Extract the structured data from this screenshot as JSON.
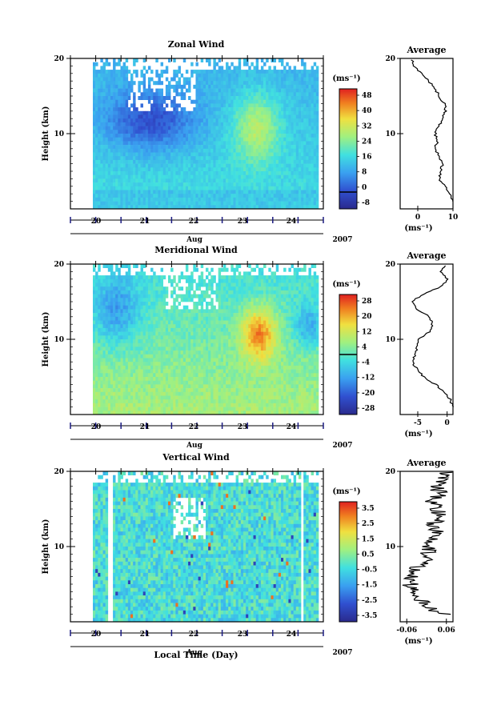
{
  "figure": {
    "xaxis_label": "Local Time (Day)"
  },
  "chart_data": [
    {
      "type": "heatmap",
      "title": "Zonal Wind",
      "ylabel": "Height (km)",
      "ylim": [
        0,
        20
      ],
      "yticks": [
        "10",
        "20"
      ],
      "x_ticks": [
        "20",
        "21",
        "22",
        "23",
        "24"
      ],
      "x_sublabel": "Aug",
      "year": "2007",
      "colorbar": {
        "unit": "(ms⁻¹)",
        "ticks": [
          "48",
          "40",
          "32",
          "24",
          "16",
          "8",
          "0",
          "-8"
        ],
        "range": [
          -8,
          48
        ]
      },
      "average": {
        "title": "Average",
        "xlabel": "(ms⁻¹)",
        "xticks": [
          "0",
          "10"
        ],
        "xlim": [
          -5,
          10
        ],
        "profile": [
          [
            1,
            10
          ],
          [
            2,
            9
          ],
          [
            3,
            8
          ],
          [
            4,
            6
          ],
          [
            5,
            6.5
          ],
          [
            6,
            7
          ],
          [
            7,
            6
          ],
          [
            8,
            5
          ],
          [
            9,
            5.5
          ],
          [
            10,
            5
          ],
          [
            11,
            6
          ],
          [
            12,
            7
          ],
          [
            13,
            8
          ],
          [
            14,
            7.5
          ],
          [
            15,
            6
          ],
          [
            16,
            5
          ],
          [
            17,
            3
          ],
          [
            18,
            1
          ],
          [
            19,
            -1
          ],
          [
            20,
            -2
          ]
        ]
      }
    },
    {
      "type": "heatmap",
      "title": "Meridional Wind",
      "ylabel": "Height (km)",
      "ylim": [
        0,
        20
      ],
      "yticks": [
        "10",
        "20"
      ],
      "x_ticks": [
        "20",
        "21",
        "22",
        "23",
        "24"
      ],
      "x_sublabel": "Aug",
      "year": "2007",
      "colorbar": {
        "unit": "(ms⁻¹)",
        "ticks": [
          "28",
          "20",
          "12",
          "4",
          "-4",
          "-12",
          "-20",
          "-28"
        ],
        "range": [
          -28,
          28
        ]
      },
      "average": {
        "title": "Average",
        "xlabel": "(ms⁻¹)",
        "xticks": [
          "-5",
          "0"
        ],
        "xlim": [
          -8,
          1
        ],
        "profile": [
          [
            1,
            1
          ],
          [
            2,
            0.5
          ],
          [
            3,
            -0.5
          ],
          [
            4,
            -2
          ],
          [
            5,
            -4
          ],
          [
            6,
            -5
          ],
          [
            7,
            -6
          ],
          [
            8,
            -5.5
          ],
          [
            9,
            -5
          ],
          [
            10,
            -5
          ],
          [
            11,
            -3
          ],
          [
            12,
            -2.5
          ],
          [
            13,
            -3
          ],
          [
            14,
            -5
          ],
          [
            15,
            -6
          ],
          [
            16,
            -4
          ],
          [
            17,
            -1
          ],
          [
            18,
            0
          ],
          [
            19,
            -1
          ],
          [
            20,
            0
          ]
        ]
      }
    },
    {
      "type": "heatmap",
      "title": "Vertical Wind",
      "ylabel": "Height (km)",
      "ylim": [
        0,
        20
      ],
      "yticks": [
        "10",
        "20"
      ],
      "x_ticks": [
        "20",
        "21",
        "22",
        "23",
        "24"
      ],
      "x_sublabel": "Aug",
      "year": "2007",
      "colorbar": {
        "unit": "(ms⁻¹)",
        "ticks": [
          "3.5",
          "2.5",
          "1.5",
          "0.5",
          "-0.5",
          "-1.5",
          "-2.5",
          "-3.5"
        ],
        "range": [
          -3.5,
          3.5
        ]
      },
      "average": {
        "title": "Average",
        "xlabel": "(ms⁻¹)",
        "xticks": [
          "-0.06",
          "0.06"
        ],
        "xlim": [
          -0.08,
          0.08
        ],
        "profile": [
          [
            1,
            0.05
          ],
          [
            2,
            0.0
          ],
          [
            3,
            -0.02
          ],
          [
            4,
            -0.04
          ],
          [
            5,
            -0.05
          ],
          [
            6,
            -0.04
          ],
          [
            7,
            -0.03
          ],
          [
            8,
            -0.01
          ],
          [
            9,
            0.0
          ],
          [
            10,
            0.01
          ],
          [
            11,
            0.02
          ],
          [
            12,
            0.03
          ],
          [
            13,
            0.02
          ],
          [
            14,
            0.04
          ],
          [
            15,
            0.03
          ],
          [
            16,
            0.02
          ],
          [
            17,
            0.04
          ],
          [
            18,
            0.03
          ],
          [
            19,
            0.05
          ],
          [
            20,
            0.06
          ]
        ]
      }
    }
  ]
}
